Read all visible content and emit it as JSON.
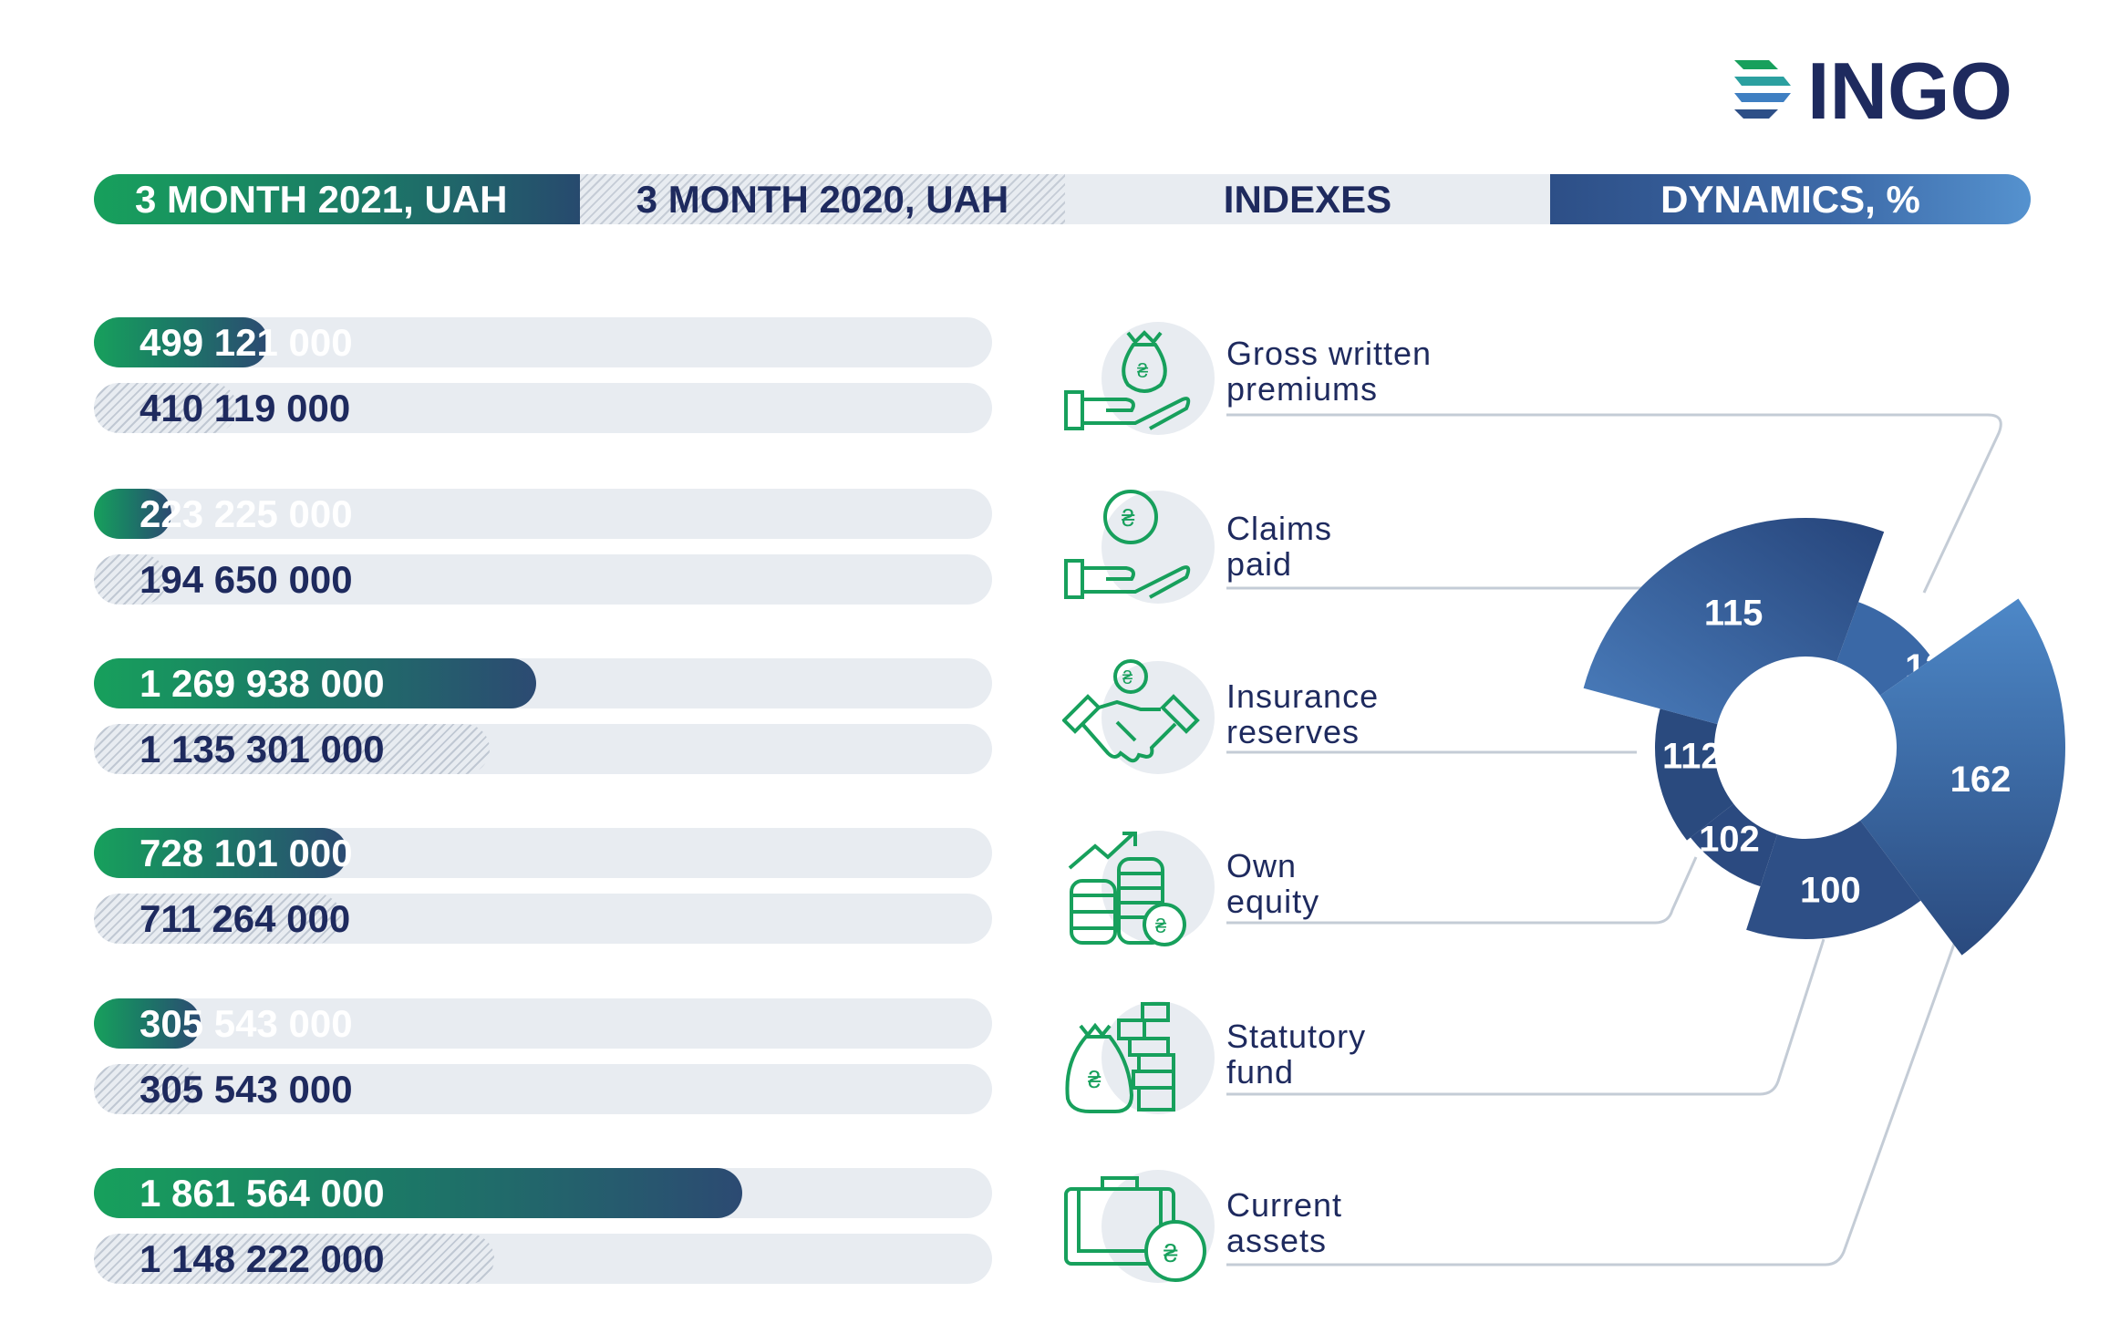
{
  "brand": {
    "name": "INGO"
  },
  "header": {
    "col_2021": "3 MONTH 2021, UAH",
    "col_2020": "3 MONTH 2020, UAH",
    "col_indexes": "INDEXES",
    "col_dynamics": "DYNAMICS, %"
  },
  "colors": {
    "green": "#17a05c",
    "navy": "#1e2a5e",
    "blue": "#2d4f87",
    "light_blue": "#5592cf",
    "track": "#e8ecf1"
  },
  "icons": [
    "money-bag-hand-icon",
    "coin-hand-icon",
    "handshake-icon",
    "coins-growth-icon",
    "money-stack-icon",
    "briefcase-icon"
  ],
  "chart_data": [
    {
      "type": "bar",
      "orientation": "horizontal",
      "categories": [
        "Gross written premiums",
        "Claims paid",
        "Insurance reserves",
        "Own equity",
        "Statutory fund",
        "Current assets"
      ],
      "series": [
        {
          "name": "3 MONTH 2021, UAH",
          "values": [
            499121000,
            223225000,
            1269938000,
            728101000,
            305543000,
            1861564000
          ],
          "labels": [
            "499 121 000",
            "223 225 000",
            "1 269 938 000",
            "728 101 000",
            "305 543 000",
            "1 861 564 000"
          ]
        },
        {
          "name": "3 MONTH 2020, UAH",
          "values": [
            410119000,
            194650000,
            1135301000,
            711264000,
            305543000,
            1148222000
          ],
          "labels": [
            "410 119 000",
            "194 650 000",
            "1 135 301 000",
            "711 264 000",
            "305 543 000",
            "1 148 222 000"
          ]
        }
      ],
      "category_labels": [
        [
          "Gross written",
          "premiums"
        ],
        [
          "Claims",
          "paid"
        ],
        [
          "Insurance",
          "reserves"
        ],
        [
          "Own",
          "equity"
        ],
        [
          "Statutory",
          "fund"
        ],
        [
          "Current",
          "assets"
        ]
      ]
    },
    {
      "type": "pie",
      "style": "donut",
      "title": "DYNAMICS, %",
      "categories": [
        "Gross written premiums",
        "Claims paid",
        "Insurance reserves",
        "Own equity",
        "Statutory fund",
        "Current assets"
      ],
      "values": [
        122,
        115,
        112,
        102,
        100,
        162
      ],
      "labels": [
        "122",
        "115",
        "112",
        "102",
        "100",
        "162"
      ]
    }
  ]
}
